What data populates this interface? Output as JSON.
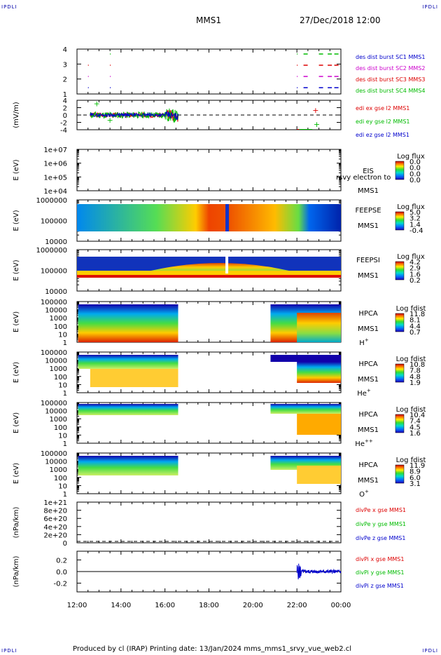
{
  "corner_mark": "IPDLI",
  "header": {
    "spacecraft": "MMS1",
    "date": "27/Dec/2018 12:00"
  },
  "footer": {
    "text": "Produced by cl (IRAP)   Printing date: 13/Jan/2024   mms_mms1_srvy_vue_web2.cl"
  },
  "colors": {
    "mms1": "#0000cc",
    "mms2": "#cc00cc",
    "mms3": "#dd0000",
    "mms4": "#00bb00",
    "x": "#dd0000",
    "y": "#00bb00",
    "z": "#0000cc"
  },
  "chart_data": [
    {
      "type": "line",
      "panel": "burst",
      "ylim": [
        0.5,
        4.5
      ],
      "yticks": [
        "4",
        "3",
        "2",
        "1"
      ],
      "legend": [
        "des dist burst SC1 MMS1",
        "des dist burst SC2 MMS2",
        "des dist burst SC3 MMS3",
        "des dist burst SC4 MMS4"
      ],
      "ylabel": ""
    },
    {
      "type": "line",
      "panel": "edi",
      "ylabel": "(mV/m)",
      "yticks": [
        "4",
        "2",
        "0",
        "-2",
        "-4"
      ],
      "ylim": [
        -4.5,
        4.5
      ],
      "legend": [
        "edi ex gse l2 MMS1",
        "edi ey gse l2 MMS1",
        "edi ez gse l2 MMS1"
      ]
    },
    {
      "type": "heatmap",
      "panel": "eis",
      "ylabel": "E (eV)",
      "yticks": [
        "1e+07",
        "1e+06",
        "1e+05",
        "1e+04"
      ],
      "labels": [
        "EIS",
        "MMS1"
      ],
      "overlay_text": "rsvy electron to",
      "colorbar_title": "Log flux",
      "colorbar_ticks": [
        "0.0",
        "0.0",
        "0.0",
        "0.0"
      ]
    },
    {
      "type": "heatmap",
      "panel": "feepse",
      "ylabel": "E (eV)",
      "yticks": [
        "1000000",
        "100000",
        "10000"
      ],
      "labels": [
        "FEEPSE",
        "MMS1"
      ],
      "colorbar_title": "Log flux",
      "colorbar_ticks": [
        "5.0",
        "3.2",
        "1.4",
        "-0.4"
      ]
    },
    {
      "type": "heatmap",
      "panel": "feepsi",
      "ylabel": "E (eV)",
      "yticks": [
        "1000000",
        "100000",
        "10000"
      ],
      "labels": [
        "FEEPSI",
        "MMS1"
      ],
      "colorbar_title": "Log flux",
      "colorbar_ticks": [
        "4.2",
        "2.9",
        "1.6",
        "0.2"
      ]
    },
    {
      "type": "heatmap",
      "panel": "hpca_h",
      "ylabel": "E (eV)",
      "yticks": [
        "100000",
        "10000",
        "1000",
        "100",
        "10",
        "1"
      ],
      "labels": [
        "HPCA",
        "MMS1"
      ],
      "species": "H",
      "species_sup": "+",
      "colorbar_title": "Log fdist",
      "colorbar_ticks": [
        "11.8",
        "8.1",
        "4.4",
        "0.7"
      ]
    },
    {
      "type": "heatmap",
      "panel": "hpca_he1",
      "ylabel": "E (eV)",
      "yticks": [
        "100000",
        "10000",
        "1000",
        "100",
        "10",
        "1"
      ],
      "labels": [
        "HPCA",
        "MMS1"
      ],
      "species": "He",
      "species_sup": "+",
      "colorbar_title": "Log fdist",
      "colorbar_ticks": [
        "10.8",
        "7.8",
        "4.8",
        "1.9"
      ]
    },
    {
      "type": "heatmap",
      "panel": "hpca_he2",
      "ylabel": "E (eV)",
      "yticks": [
        "100000",
        "10000",
        "1000",
        "100",
        "10",
        "1"
      ],
      "labels": [
        "HPCA",
        "MMS1"
      ],
      "species": "He",
      "species_sup": "++",
      "colorbar_title": "Log fdist",
      "colorbar_ticks": [
        "10.4",
        "7.4",
        "4.5",
        "1.6"
      ]
    },
    {
      "type": "heatmap",
      "panel": "hpca_o",
      "ylabel": "E (eV)",
      "yticks": [
        "100000",
        "10000",
        "1000",
        "100",
        "10",
        "1"
      ],
      "labels": [
        "HPCA",
        "MMS1"
      ],
      "species": "O",
      "species_sup": "+",
      "colorbar_title": "Log fdist",
      "colorbar_ticks": [
        "11.9",
        "8.9",
        "6.0",
        "3.1"
      ]
    },
    {
      "type": "line",
      "panel": "divpe",
      "ylabel": "(nPa/km)",
      "yticks": [
        "1e+21",
        "8e+20",
        "6e+20",
        "4e+20",
        "2e+20",
        "0"
      ],
      "legend": [
        "divPe x gse MMS1",
        "divPe y gse MMS1",
        "divPe z gse MMS1"
      ]
    },
    {
      "type": "line",
      "panel": "divpi",
      "ylabel": "(nPa/km)",
      "yticks": [
        "0.2",
        "0.0",
        "-0.2"
      ],
      "ylim": [
        -0.35,
        0.35
      ],
      "legend": [
        "divPi x gse MMS1",
        "divPi y gse MMS1",
        "divPi z gse MMS1"
      ]
    }
  ],
  "xaxis": {
    "ticks": [
      "12:00",
      "14:00",
      "16:00",
      "18:00",
      "20:00",
      "22:00",
      "00:00"
    ],
    "range_hours": [
      12,
      24
    ]
  }
}
